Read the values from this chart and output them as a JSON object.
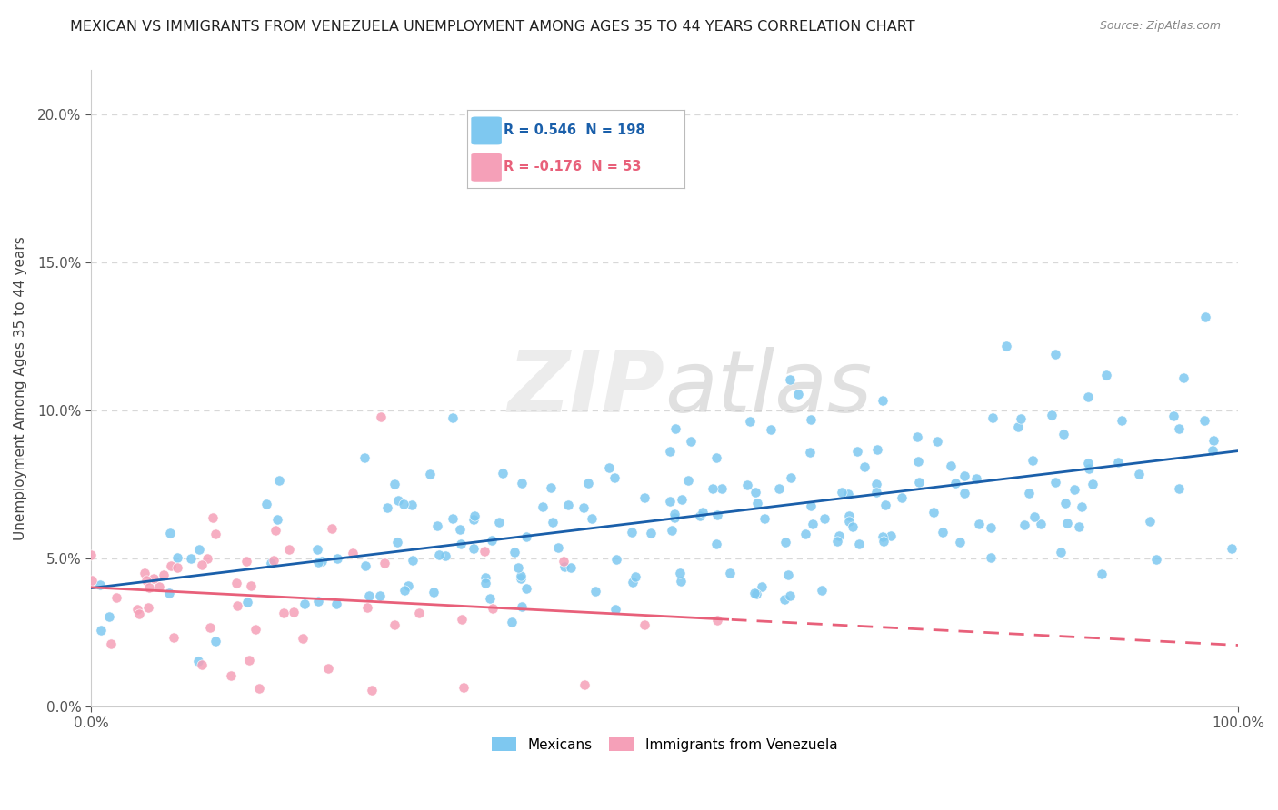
{
  "title": "MEXICAN VS IMMIGRANTS FROM VENEZUELA UNEMPLOYMENT AMONG AGES 35 TO 44 YEARS CORRELATION CHART",
  "source": "Source: ZipAtlas.com",
  "ylabel": "Unemployment Among Ages 35 to 44 years",
  "xlim": [
    0.0,
    1.0
  ],
  "ylim": [
    0.0,
    0.215
  ],
  "yticks": [
    0.0,
    0.05,
    0.1,
    0.15,
    0.2
  ],
  "ytick_labels": [
    "0.0%",
    "5.0%",
    "10.0%",
    "15.0%",
    "20.0%"
  ],
  "xticks": [
    0.0,
    1.0
  ],
  "xtick_labels": [
    "0.0%",
    "100.0%"
  ],
  "mexican_color": "#7ec8f0",
  "venezuela_color": "#f5a0b8",
  "mexican_line_color": "#1a5faa",
  "venezuela_line_color": "#e8607a",
  "R_mexican": 0.546,
  "N_mexican": 198,
  "R_venezuela": -0.176,
  "N_venezuela": 53,
  "legend_label_mexican": "Mexicans",
  "legend_label_venezuela": "Immigrants from Venezuela",
  "watermark_zip": "ZIP",
  "watermark_atlas": "atlas",
  "background_color": "#ffffff",
  "grid_color": "#d8d8d8",
  "title_fontsize": 11.5,
  "axis_fontsize": 11,
  "tick_fontsize": 11,
  "legend_fontsize": 11
}
